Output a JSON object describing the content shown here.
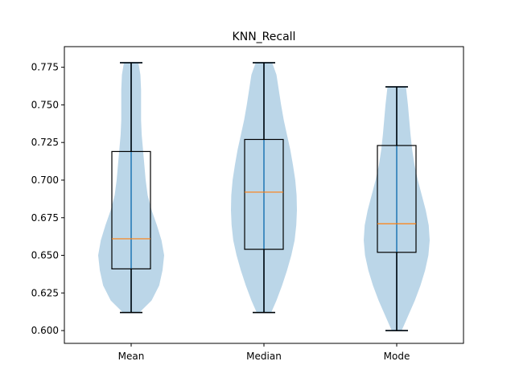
{
  "chart_data": {
    "type": "violin",
    "title": "KNN_Recall",
    "xlabel": "",
    "ylabel": "",
    "categories": [
      "Mean",
      "Median",
      "Mode"
    ],
    "ylim": [
      0.5915,
      0.7887
    ],
    "yticks": [
      "0.600",
      "0.625",
      "0.650",
      "0.675",
      "0.700",
      "0.725",
      "0.750",
      "0.775"
    ],
    "grid": false,
    "groups": [
      {
        "name": "Mean",
        "min": 0.612,
        "max": 0.778,
        "q1": 0.641,
        "median": 0.661,
        "q3": 0.719,
        "density": [
          [
            0.612,
            0.25
          ],
          [
            0.62,
            0.62
          ],
          [
            0.63,
            0.85
          ],
          [
            0.64,
            0.95
          ],
          [
            0.65,
            1.0
          ],
          [
            0.66,
            0.92
          ],
          [
            0.67,
            0.78
          ],
          [
            0.68,
            0.62
          ],
          [
            0.69,
            0.5
          ],
          [
            0.7,
            0.44
          ],
          [
            0.71,
            0.4
          ],
          [
            0.72,
            0.36
          ],
          [
            0.73,
            0.32
          ],
          [
            0.74,
            0.3
          ],
          [
            0.75,
            0.3
          ],
          [
            0.76,
            0.3
          ],
          [
            0.77,
            0.28
          ],
          [
            0.778,
            0.22
          ]
        ]
      },
      {
        "name": "Median",
        "min": 0.612,
        "max": 0.778,
        "q1": 0.654,
        "median": 0.692,
        "q3": 0.727,
        "density": [
          [
            0.612,
            0.22
          ],
          [
            0.62,
            0.38
          ],
          [
            0.63,
            0.55
          ],
          [
            0.64,
            0.7
          ],
          [
            0.65,
            0.83
          ],
          [
            0.66,
            0.93
          ],
          [
            0.67,
            0.98
          ],
          [
            0.68,
            1.0
          ],
          [
            0.69,
            0.99
          ],
          [
            0.7,
            0.95
          ],
          [
            0.71,
            0.88
          ],
          [
            0.72,
            0.8
          ],
          [
            0.73,
            0.7
          ],
          [
            0.74,
            0.6
          ],
          [
            0.75,
            0.52
          ],
          [
            0.76,
            0.45
          ],
          [
            0.77,
            0.38
          ],
          [
            0.778,
            0.25
          ]
        ]
      },
      {
        "name": "Mode",
        "min": 0.6,
        "max": 0.762,
        "q1": 0.652,
        "median": 0.671,
        "q3": 0.723,
        "density": [
          [
            0.6,
            0.15
          ],
          [
            0.61,
            0.35
          ],
          [
            0.62,
            0.55
          ],
          [
            0.63,
            0.72
          ],
          [
            0.64,
            0.86
          ],
          [
            0.65,
            0.96
          ],
          [
            0.66,
            1.0
          ],
          [
            0.67,
            0.97
          ],
          [
            0.68,
            0.88
          ],
          [
            0.69,
            0.76
          ],
          [
            0.7,
            0.64
          ],
          [
            0.71,
            0.54
          ],
          [
            0.72,
            0.47
          ],
          [
            0.73,
            0.42
          ],
          [
            0.74,
            0.38
          ],
          [
            0.75,
            0.34
          ],
          [
            0.762,
            0.28
          ]
        ]
      }
    ],
    "colors": {
      "violin_fill": "#1f77b4",
      "median": "#ff7f0e",
      "center_line": "#1f77b4",
      "box": "#000000",
      "axes": "#000000"
    }
  }
}
